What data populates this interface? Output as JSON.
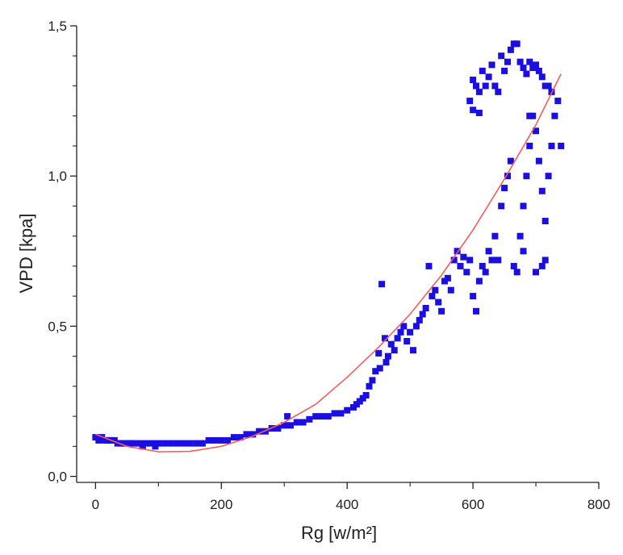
{
  "chart_data": {
    "type": "scatter",
    "xlabel": "Rg [w/m²]",
    "ylabel": "VPD [kpa]",
    "xlim": [
      -30,
      800
    ],
    "ylim": [
      -0.02,
      1.5
    ],
    "xticks": [
      0,
      200,
      400,
      600,
      800
    ],
    "xtick_labels": [
      "0",
      "200",
      "400",
      "600",
      "800"
    ],
    "yticks": [
      0.0,
      0.5,
      1.0,
      1.5
    ],
    "ytick_labels": [
      "0,0",
      "0,5",
      "1,0",
      "1,5"
    ],
    "grid": false,
    "series": [
      {
        "marker": "square",
        "color": "#1a0fe0",
        "points": [
          [
            0,
            0.13
          ],
          [
            5,
            0.12
          ],
          [
            10,
            0.13
          ],
          [
            15,
            0.12
          ],
          [
            20,
            0.12
          ],
          [
            25,
            0.12
          ],
          [
            30,
            0.12
          ],
          [
            35,
            0.11
          ],
          [
            40,
            0.11
          ],
          [
            45,
            0.11
          ],
          [
            50,
            0.11
          ],
          [
            55,
            0.11
          ],
          [
            60,
            0.11
          ],
          [
            70,
            0.11
          ],
          [
            75,
            0.1
          ],
          [
            80,
            0.11
          ],
          [
            90,
            0.11
          ],
          [
            95,
            0.1
          ],
          [
            100,
            0.11
          ],
          [
            110,
            0.11
          ],
          [
            120,
            0.11
          ],
          [
            130,
            0.11
          ],
          [
            140,
            0.11
          ],
          [
            150,
            0.11
          ],
          [
            160,
            0.11
          ],
          [
            170,
            0.11
          ],
          [
            180,
            0.12
          ],
          [
            190,
            0.12
          ],
          [
            200,
            0.12
          ],
          [
            210,
            0.12
          ],
          [
            220,
            0.13
          ],
          [
            230,
            0.13
          ],
          [
            240,
            0.14
          ],
          [
            250,
            0.14
          ],
          [
            260,
            0.15
          ],
          [
            270,
            0.15
          ],
          [
            280,
            0.16
          ],
          [
            290,
            0.16
          ],
          [
            300,
            0.17
          ],
          [
            305,
            0.2
          ],
          [
            310,
            0.17
          ],
          [
            320,
            0.18
          ],
          [
            330,
            0.18
          ],
          [
            340,
            0.19
          ],
          [
            350,
            0.2
          ],
          [
            360,
            0.2
          ],
          [
            370,
            0.2
          ],
          [
            380,
            0.21
          ],
          [
            390,
            0.21
          ],
          [
            400,
            0.22
          ],
          [
            410,
            0.23
          ],
          [
            415,
            0.24
          ],
          [
            420,
            0.25
          ],
          [
            425,
            0.26
          ],
          [
            430,
            0.27
          ],
          [
            435,
            0.3
          ],
          [
            440,
            0.32
          ],
          [
            445,
            0.35
          ],
          [
            450,
            0.41
          ],
          [
            452,
            0.36
          ],
          [
            455,
            0.64
          ],
          [
            460,
            0.46
          ],
          [
            462,
            0.38
          ],
          [
            465,
            0.4
          ],
          [
            470,
            0.44
          ],
          [
            475,
            0.42
          ],
          [
            480,
            0.46
          ],
          [
            485,
            0.48
          ],
          [
            490,
            0.5
          ],
          [
            495,
            0.45
          ],
          [
            500,
            0.48
          ],
          [
            505,
            0.42
          ],
          [
            510,
            0.5
          ],
          [
            515,
            0.52
          ],
          [
            520,
            0.54
          ],
          [
            525,
            0.56
          ],
          [
            530,
            0.7
          ],
          [
            535,
            0.6
          ],
          [
            540,
            0.62
          ],
          [
            545,
            0.58
          ],
          [
            550,
            0.55
          ],
          [
            555,
            0.65
          ],
          [
            560,
            0.66
          ],
          [
            565,
            0.62
          ],
          [
            570,
            0.72
          ],
          [
            575,
            0.75
          ],
          [
            580,
            0.7
          ],
          [
            585,
            0.73
          ],
          [
            590,
            0.68
          ],
          [
            595,
            0.72
          ],
          [
            600,
            0.6
          ],
          [
            605,
            0.55
          ],
          [
            610,
            0.65
          ],
          [
            615,
            0.7
          ],
          [
            620,
            0.68
          ],
          [
            625,
            0.75
          ],
          [
            630,
            0.72
          ],
          [
            635,
            0.8
          ],
          [
            640,
            0.72
          ],
          [
            645,
            0.9
          ],
          [
            650,
            0.96
          ],
          [
            655,
            1.0
          ],
          [
            660,
            1.05
          ],
          [
            665,
            0.7
          ],
          [
            670,
            0.68
          ],
          [
            675,
            0.8
          ],
          [
            680,
            0.9
          ],
          [
            685,
            1.0
          ],
          [
            690,
            1.1
          ],
          [
            695,
            1.2
          ],
          [
            700,
            1.15
          ],
          [
            705,
            1.05
          ],
          [
            710,
            0.95
          ],
          [
            715,
            0.85
          ],
          [
            720,
            1.0
          ],
          [
            725,
            1.1
          ],
          [
            730,
            1.2
          ],
          [
            735,
            1.25
          ],
          [
            740,
            1.1
          ],
          [
            600,
            1.32
          ],
          [
            605,
            1.3
          ],
          [
            610,
            1.28
          ],
          [
            615,
            1.35
          ],
          [
            620,
            1.3
          ],
          [
            625,
            1.33
          ],
          [
            630,
            1.37
          ],
          [
            635,
            1.3
          ],
          [
            640,
            1.28
          ],
          [
            645,
            1.4
          ],
          [
            650,
            1.35
          ],
          [
            655,
            1.38
          ],
          [
            660,
            1.42
          ],
          [
            665,
            1.44
          ],
          [
            670,
            1.44
          ],
          [
            675,
            1.38
          ],
          [
            680,
            1.36
          ],
          [
            685,
            1.34
          ],
          [
            690,
            1.38
          ],
          [
            695,
            1.36
          ],
          [
            700,
            1.37
          ],
          [
            705,
            1.35
          ],
          [
            710,
            1.33
          ],
          [
            715,
            1.3
          ],
          [
            720,
            1.3
          ],
          [
            725,
            1.28
          ],
          [
            595,
            1.25
          ],
          [
            600,
            1.22
          ],
          [
            610,
            1.21
          ],
          [
            690,
            1.2
          ],
          [
            680,
            0.75
          ],
          [
            700,
            0.68
          ],
          [
            710,
            0.7
          ],
          [
            715,
            0.72
          ]
        ]
      },
      {
        "type": "line",
        "color": "#ff5a5a",
        "x": [
          0,
          50,
          100,
          150,
          200,
          250,
          300,
          350,
          400,
          450,
          500,
          550,
          600,
          650,
          700,
          740
        ],
        "y": [
          0.14,
          0.1,
          0.082,
          0.083,
          0.1,
          0.134,
          0.18,
          0.24,
          0.33,
          0.43,
          0.54,
          0.67,
          0.82,
          0.99,
          1.17,
          1.34
        ]
      }
    ]
  }
}
